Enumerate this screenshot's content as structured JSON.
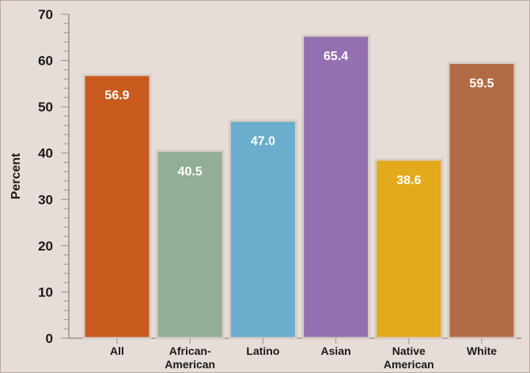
{
  "chart_data": {
    "type": "bar",
    "title": "",
    "xlabel": "",
    "ylabel": "Percent",
    "ylim": [
      0,
      70
    ],
    "yticks": [
      0,
      10,
      20,
      30,
      40,
      50,
      60,
      70
    ],
    "grid": false,
    "categories": [
      [
        "All"
      ],
      [
        "African-",
        "American"
      ],
      [
        "Latino"
      ],
      [
        "Asian"
      ],
      [
        "Native",
        "American"
      ],
      [
        "White"
      ]
    ],
    "values": [
      56.9,
      40.5,
      47.0,
      65.4,
      38.6,
      59.5
    ],
    "data_labels": [
      "56.9",
      "40.5",
      "47.0",
      "65.4",
      "38.6",
      "59.5"
    ],
    "colors": [
      "#c85a1e",
      "#92ae96",
      "#6aadcd",
      "#9470b3",
      "#e3aa1b",
      "#b26c45"
    ],
    "bar_edge_color": "#d8cdc5",
    "background_color": "#e6ddd8"
  }
}
